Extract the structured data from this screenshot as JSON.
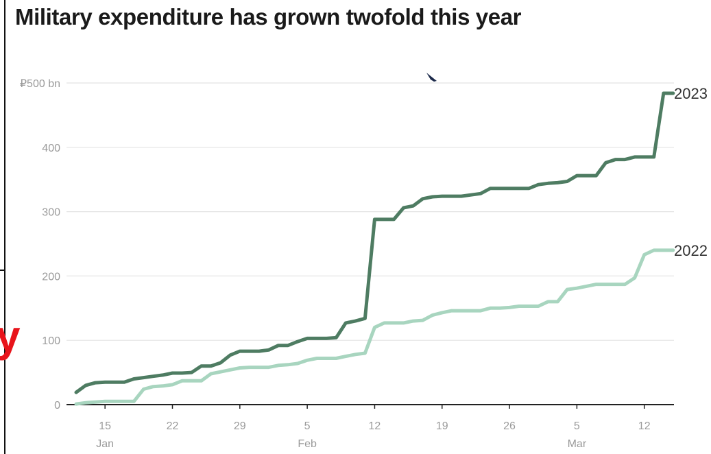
{
  "title": "Military expenditure has grown twofold this year",
  "stray_letter": "y",
  "colors": {
    "series_2023": "#4e7c62",
    "series_2022": "#a8d5bf",
    "grid": "#e4e4e4",
    "axis": "#222222",
    "stray_letter": "#e8141b"
  },
  "chart_data": {
    "type": "line",
    "title": "Military expenditure has grown twofold this year",
    "ylim": [
      0,
      500
    ],
    "y_ticks": [
      {
        "value": 0,
        "label": "0"
      },
      {
        "value": 100,
        "label": "100"
      },
      {
        "value": 200,
        "label": "200"
      },
      {
        "value": 300,
        "label": "300"
      },
      {
        "value": 400,
        "label": "400"
      },
      {
        "value": 500,
        "label": "₽500 bn"
      }
    ],
    "x_axis": {
      "start_date": "2023-01-11",
      "end_date": "2023-03-14",
      "ticks": [
        {
          "date": "2023-01-15",
          "label": "15",
          "month": "Jan"
        },
        {
          "date": "2023-01-22",
          "label": "22",
          "month": ""
        },
        {
          "date": "2023-01-29",
          "label": "29",
          "month": ""
        },
        {
          "date": "2023-02-05",
          "label": "5",
          "month": "Feb"
        },
        {
          "date": "2023-02-12",
          "label": "12",
          "month": ""
        },
        {
          "date": "2023-02-19",
          "label": "19",
          "month": ""
        },
        {
          "date": "2023-02-26",
          "label": "26",
          "month": ""
        },
        {
          "date": "2023-03-05",
          "label": "5",
          "month": "Mar"
        },
        {
          "date": "2023-03-12",
          "label": "12",
          "month": ""
        }
      ]
    },
    "grid": true,
    "series": [
      {
        "name": "2023",
        "color": "#4e7c62",
        "points": [
          [
            "2023-01-12",
            19
          ],
          [
            "2023-01-13",
            30
          ],
          [
            "2023-01-14",
            34
          ],
          [
            "2023-01-15",
            35
          ],
          [
            "2023-01-16",
            35
          ],
          [
            "2023-01-17",
            35
          ],
          [
            "2023-01-18",
            40
          ],
          [
            "2023-01-19",
            42
          ],
          [
            "2023-01-20",
            44
          ],
          [
            "2023-01-21",
            46
          ],
          [
            "2023-01-22",
            49
          ],
          [
            "2023-01-23",
            49
          ],
          [
            "2023-01-24",
            50
          ],
          [
            "2023-01-25",
            60
          ],
          [
            "2023-01-26",
            60
          ],
          [
            "2023-01-27",
            65
          ],
          [
            "2023-01-28",
            77
          ],
          [
            "2023-01-29",
            83
          ],
          [
            "2023-01-30",
            83
          ],
          [
            "2023-01-31",
            83
          ],
          [
            "2023-02-01",
            85
          ],
          [
            "2023-02-02",
            92
          ],
          [
            "2023-02-03",
            92
          ],
          [
            "2023-02-04",
            98
          ],
          [
            "2023-02-05",
            103
          ],
          [
            "2023-02-06",
            103
          ],
          [
            "2023-02-07",
            103
          ],
          [
            "2023-02-08",
            104
          ],
          [
            "2023-02-09",
            127
          ],
          [
            "2023-02-10",
            130
          ],
          [
            "2023-02-11",
            134
          ],
          [
            "2023-02-12",
            288
          ],
          [
            "2023-02-13",
            288
          ],
          [
            "2023-02-14",
            288
          ],
          [
            "2023-02-15",
            306
          ],
          [
            "2023-02-16",
            309
          ],
          [
            "2023-02-17",
            320
          ],
          [
            "2023-02-18",
            323
          ],
          [
            "2023-02-19",
            324
          ],
          [
            "2023-02-20",
            324
          ],
          [
            "2023-02-21",
            324
          ],
          [
            "2023-02-22",
            326
          ],
          [
            "2023-02-23",
            328
          ],
          [
            "2023-02-24",
            336
          ],
          [
            "2023-02-25",
            336
          ],
          [
            "2023-02-26",
            336
          ],
          [
            "2023-02-27",
            336
          ],
          [
            "2023-02-28",
            336
          ],
          [
            "2023-03-01",
            342
          ],
          [
            "2023-03-02",
            344
          ],
          [
            "2023-03-03",
            345
          ],
          [
            "2023-03-04",
            347
          ],
          [
            "2023-03-05",
            356
          ],
          [
            "2023-03-06",
            356
          ],
          [
            "2023-03-07",
            356
          ],
          [
            "2023-03-08",
            376
          ],
          [
            "2023-03-09",
            381
          ],
          [
            "2023-03-10",
            381
          ],
          [
            "2023-03-11",
            385
          ],
          [
            "2023-03-12",
            385
          ],
          [
            "2023-03-13",
            385
          ],
          [
            "2023-03-14",
            484
          ],
          [
            "2023-03-15",
            484
          ]
        ]
      },
      {
        "name": "2022",
        "color": "#a8d5bf",
        "points": [
          [
            "2023-01-12",
            1
          ],
          [
            "2023-01-13",
            3
          ],
          [
            "2023-01-14",
            4
          ],
          [
            "2023-01-15",
            5
          ],
          [
            "2023-01-16",
            5
          ],
          [
            "2023-01-17",
            5
          ],
          [
            "2023-01-18",
            5
          ],
          [
            "2023-01-19",
            24
          ],
          [
            "2023-01-20",
            28
          ],
          [
            "2023-01-21",
            29
          ],
          [
            "2023-01-22",
            31
          ],
          [
            "2023-01-23",
            37
          ],
          [
            "2023-01-24",
            37
          ],
          [
            "2023-01-25",
            37
          ],
          [
            "2023-01-26",
            48
          ],
          [
            "2023-01-27",
            51
          ],
          [
            "2023-01-28",
            54
          ],
          [
            "2023-01-29",
            57
          ],
          [
            "2023-01-30",
            58
          ],
          [
            "2023-01-31",
            58
          ],
          [
            "2023-02-01",
            58
          ],
          [
            "2023-02-02",
            61
          ],
          [
            "2023-02-03",
            62
          ],
          [
            "2023-02-04",
            64
          ],
          [
            "2023-02-05",
            69
          ],
          [
            "2023-02-06",
            72
          ],
          [
            "2023-02-07",
            72
          ],
          [
            "2023-02-08",
            72
          ],
          [
            "2023-02-09",
            75
          ],
          [
            "2023-02-10",
            78
          ],
          [
            "2023-02-11",
            80
          ],
          [
            "2023-02-12",
            120
          ],
          [
            "2023-02-13",
            127
          ],
          [
            "2023-02-14",
            127
          ],
          [
            "2023-02-15",
            127
          ],
          [
            "2023-02-16",
            130
          ],
          [
            "2023-02-17",
            131
          ],
          [
            "2023-02-18",
            139
          ],
          [
            "2023-02-19",
            143
          ],
          [
            "2023-02-20",
            146
          ],
          [
            "2023-02-21",
            146
          ],
          [
            "2023-02-22",
            146
          ],
          [
            "2023-02-23",
            146
          ],
          [
            "2023-02-24",
            150
          ],
          [
            "2023-02-25",
            150
          ],
          [
            "2023-02-26",
            151
          ],
          [
            "2023-02-27",
            153
          ],
          [
            "2023-02-28",
            153
          ],
          [
            "2023-03-01",
            153
          ],
          [
            "2023-03-02",
            160
          ],
          [
            "2023-03-03",
            160
          ],
          [
            "2023-03-04",
            179
          ],
          [
            "2023-03-05",
            181
          ],
          [
            "2023-03-06",
            184
          ],
          [
            "2023-03-07",
            187
          ],
          [
            "2023-03-08",
            187
          ],
          [
            "2023-03-09",
            187
          ],
          [
            "2023-03-10",
            187
          ],
          [
            "2023-03-11",
            197
          ],
          [
            "2023-03-12",
            233
          ],
          [
            "2023-03-13",
            240
          ],
          [
            "2023-03-14",
            240
          ],
          [
            "2023-03-15",
            240
          ]
        ]
      }
    ]
  }
}
